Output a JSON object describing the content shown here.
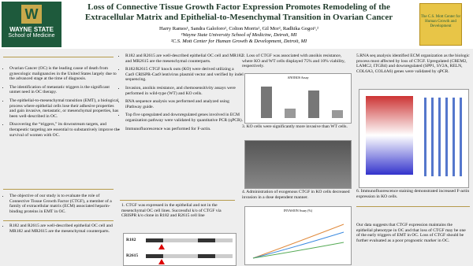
{
  "header": {
    "title": "Loss of Connective Tissue Growth Factor Expression Promotes Remodeling of the Extracellular Matrix and Epithelial-to-Mesenchymal Transition in Ovarian Cancer",
    "authors": "Harry Ramos¹, Sandra Galoforo², Colton Morris², Gil Mor², Radhika Gogoi¹,²",
    "affiliation_1": "¹Wayne State University School of Medicine, Detroit, MI",
    "affiliation_2": "²C.S. Mott Center for Human Growth & Development, Detroit, MI",
    "logo_left": [
      "WAYNE STATE",
      "School of Medicine"
    ],
    "logo_right": "The C.S. Mott Center for Human Growth and Development"
  },
  "column_1": {
    "bullets": [
      "Ovarian Cancer (OC) is the leading cause of death from gynecologic malignancies in the United States largely due to the advanced stage at the time of diagnosis.",
      "The identification of metastatic triggers is the significant unmet need in OC therapy.",
      "The epithelial-to-mesenchymal transition (EMT), a biological process where epithelial cells lose their adhesive properties and gain invasive, metastatic, or mesenchymal properties, has been well-described in OC.",
      "Discovering the “triggers,” its downstream targets, and therapeutic targeting are essential to substantively improve the survival of women with OC.",
      "The objective of our study is to evaluate the role of Connective Tissue Growth Factor (CTGF), a member of a family of extracellular matrix (ECM) associated heparin-binding proteins in EMT in OC.",
      "R182 and R2615 are well-described epithelial OC cell and MR182 and MR2615 are the mesenchymal counterparts."
    ]
  },
  "column_2": {
    "bullets": [
      "R182 and R2615 are well-described epithelial OC cell and MR182 and MR2615 are the mesenchymal counterparts.",
      "R182/R2615 CTGF knock outs (KO) were derived utilizing a Cas9 CRISPR-Cas9 lentivirus plasmid vector and verified by indel sequencing.",
      "Invasion, anoikis resistance, and chemosensitivity assays were performed in wild-type (WT) and KO cells.",
      "RNA sequence analysis was performed and analyzed using iPathway guide.",
      "Top five upregulated and downregulated genes involved in ECM organization pathway were validated by quantitative PCR (qPCR).",
      "Immunofluorescence was performed for F-actin."
    ],
    "result_1": "1. CTGF was expressed in the epithelial and not in the mesenchymal OC cell lines. Successful k/o of CTGF via CRISPR k/o clone in R182 and R2615 cell line",
    "blot_labels": [
      "R182",
      "R2615"
    ]
  },
  "column_3": {
    "result_2": "2. Loss of CTGF was associated with anoikis resistance, where KO and WT cells displayed 75% and 10% viability, respectively.",
    "chart_1_title": "ANOIKIS Assay",
    "result_3": "3. KO cells were significantly more invasive than WT cells.",
    "result_4": "4. Administration of exogenous CTGF in KO cells decreased invasion in a dose dependent manner.",
    "chart_2_title": "INVASION Assay (%)"
  },
  "column_4": {
    "result_5": "5.RNA seq analysis identified ECM organization as the biologic process most affected by loss of CTGF. Upregulated (CREM2, LAMC2, ITGB4) and downregulated (SPP1, SV2A, RELN, COL6A3, COL4A6) genes were validated by qPCR.",
    "result_6": "6. Immunofluorescence staining demonstrated increased F-actin expression in KO cells.",
    "conclusion": "Our data suggests that CTGF expression maintains the epithelial phenotype in OC and that loss of CTGF may be one of the early triggers of EMT in OC. Loss of CTGF should be further evaluated as a poor prognostic marker in OC."
  }
}
